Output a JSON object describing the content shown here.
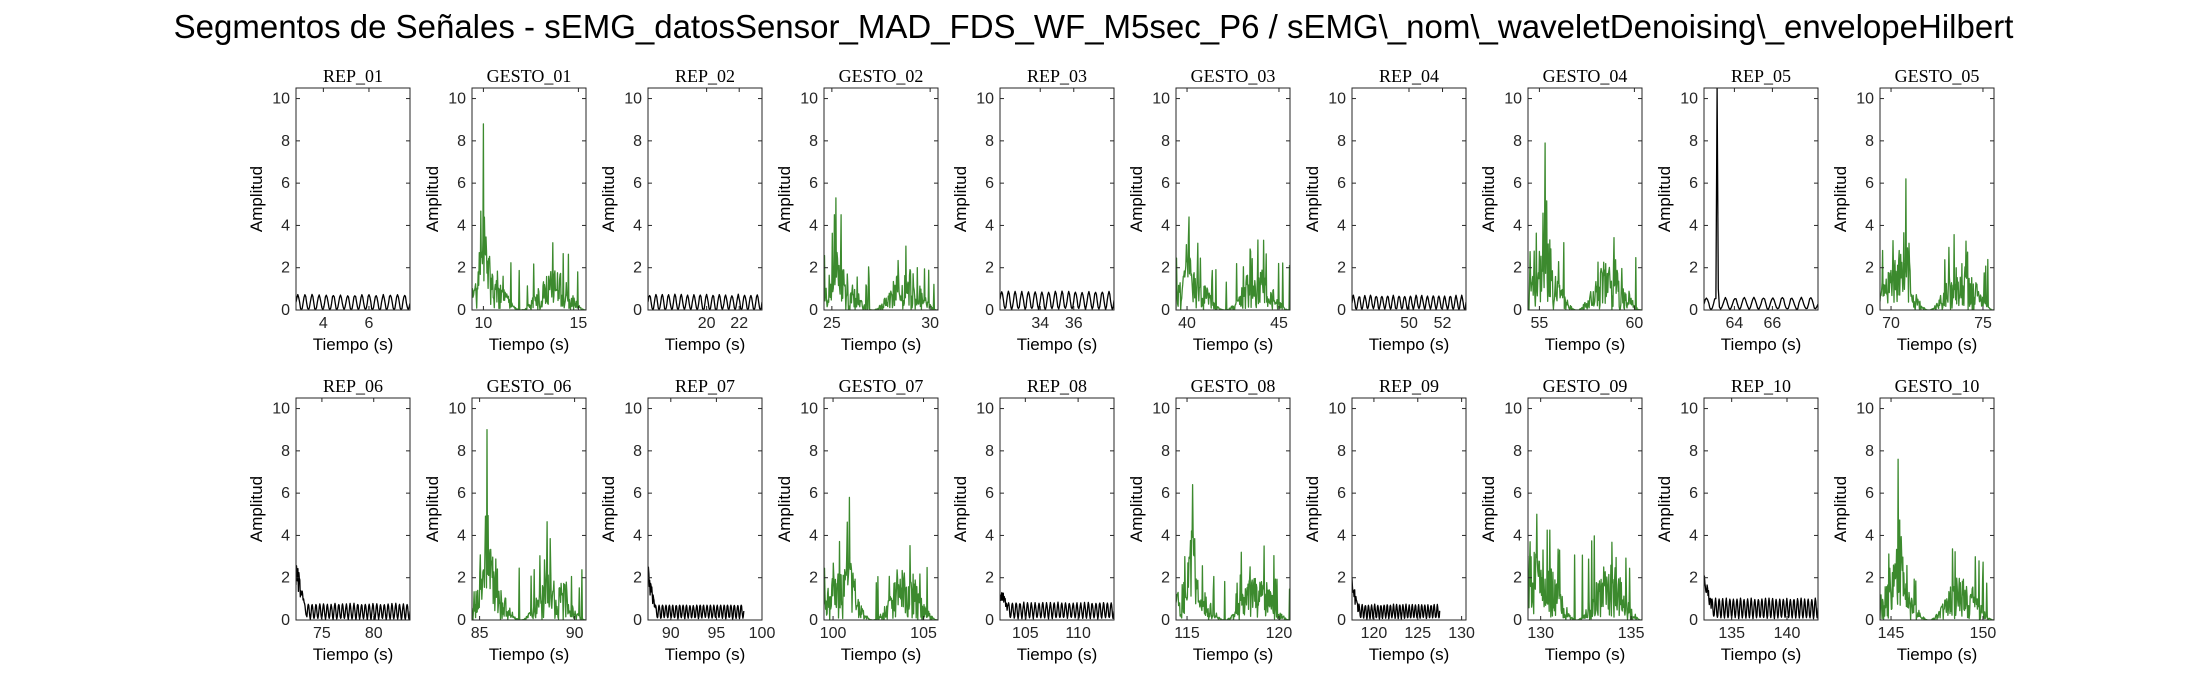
{
  "figure": {
    "title": "Segmentos de Señales - sEMG_datosSensor_MAD_FDS_WF_M5sec_P6 / sEMG\\_nom\\_waveletDenoising\\_envelopeHilbert"
  },
  "colors": {
    "rep": "#000000",
    "gesto": "#3c8a2e",
    "axis": "#262626"
  },
  "chart_data": [
    {
      "type": "line",
      "title": "REP_01",
      "xlabel": "Tiempo (s)",
      "ylabel": "Amplitud",
      "xlim": [
        2.8,
        7.8
      ],
      "ylim": [
        0,
        10.5
      ],
      "xticks": [
        4,
        6
      ],
      "yticks": [
        0,
        2,
        4,
        6,
        8,
        10
      ],
      "color": "rep",
      "series": [
        {
          "name": "REP_01",
          "x_range": [
            2.8,
            7.8
          ],
          "baseline": 0.35,
          "amplitude": 0.4,
          "peak": 0.8,
          "oscillation": 16
        }
      ]
    },
    {
      "type": "line",
      "title": "GESTO_01",
      "xlabel": "Tiempo (s)",
      "ylabel": "Amplitud",
      "xlim": [
        9.4,
        15.4
      ],
      "ylim": [
        0,
        10.5
      ],
      "xticks": [
        10,
        15
      ],
      "yticks": [
        0,
        2,
        4,
        6,
        8,
        10
      ],
      "color": "gesto",
      "series": [
        {
          "name": "GESTO_01",
          "x_range": [
            9.4,
            15.4
          ],
          "peak_x": 10.0,
          "peak": 8.8,
          "typical": 1.0
        }
      ]
    },
    {
      "type": "line",
      "title": "REP_02",
      "xlabel": "Tiempo (s)",
      "ylabel": "Amplitud",
      "xlim": [
        16.4,
        23.4
      ],
      "ylim": [
        0,
        10.5
      ],
      "xticks": [
        20,
        22
      ],
      "yticks": [
        0,
        2,
        4,
        6,
        8,
        10
      ],
      "color": "rep",
      "series": [
        {
          "name": "REP_02",
          "x_range": [
            16.4,
            23.4
          ],
          "baseline": 0.35,
          "amplitude": 0.4,
          "peak": 0.8,
          "oscillation": 18
        }
      ]
    },
    {
      "type": "line",
      "title": "GESTO_02",
      "xlabel": "Tiempo (s)",
      "ylabel": "Amplitud",
      "xlim": [
        24.6,
        30.4
      ],
      "ylim": [
        0,
        10.5
      ],
      "xticks": [
        25,
        30
      ],
      "yticks": [
        0,
        2,
        4,
        6,
        8,
        10
      ],
      "color": "gesto",
      "series": [
        {
          "name": "GESTO_02",
          "x_range": [
            24.6,
            30.4
          ],
          "peak_x": 25.2,
          "peak": 5.3,
          "typical": 1.0
        }
      ]
    },
    {
      "type": "line",
      "title": "REP_03",
      "xlabel": "Tiempo (s)",
      "ylabel": "Amplitud",
      "xlim": [
        31.6,
        38.4
      ],
      "ylim": [
        0,
        10.5
      ],
      "xticks": [
        34,
        36
      ],
      "yticks": [
        0,
        2,
        4,
        6,
        8,
        10
      ],
      "color": "rep",
      "series": [
        {
          "name": "REP_03",
          "x_range": [
            31.6,
            38.4
          ],
          "baseline": 0.45,
          "amplitude": 0.45,
          "peak": 0.9,
          "oscillation": 17
        }
      ]
    },
    {
      "type": "line",
      "title": "GESTO_03",
      "xlabel": "Tiempo (s)",
      "ylabel": "Amplitud",
      "xlim": [
        39.4,
        45.6
      ],
      "ylim": [
        0,
        10.5
      ],
      "xticks": [
        40,
        45
      ],
      "yticks": [
        0,
        2,
        4,
        6,
        8,
        10
      ],
      "color": "gesto",
      "series": [
        {
          "name": "GESTO_03",
          "x_range": [
            39.4,
            45.6
          ],
          "peak_x": 40.1,
          "peak": 4.4,
          "typical": 1.0
        }
      ]
    },
    {
      "type": "line",
      "title": "REP_04",
      "xlabel": "Tiempo (s)",
      "ylabel": "Amplitud",
      "xlim": [
        46.6,
        53.4
      ],
      "ylim": [
        0,
        10.5
      ],
      "xticks": [
        50,
        52
      ],
      "yticks": [
        0,
        2,
        4,
        6,
        8,
        10
      ],
      "color": "rep",
      "series": [
        {
          "name": "REP_04",
          "x_range": [
            46.6,
            53.4
          ],
          "baseline": 0.35,
          "amplitude": 0.35,
          "peak": 0.7,
          "oscillation": 20
        }
      ]
    },
    {
      "type": "line",
      "title": "GESTO_04",
      "xlabel": "Tiempo (s)",
      "ylabel": "Amplitud",
      "xlim": [
        54.4,
        60.4
      ],
      "ylim": [
        0,
        10.5
      ],
      "xticks": [
        55,
        60
      ],
      "yticks": [
        0,
        2,
        4,
        6,
        8,
        10
      ],
      "color": "gesto",
      "series": [
        {
          "name": "GESTO_04",
          "x_range": [
            54.4,
            60.4
          ],
          "peak_x": 55.3,
          "peak": 7.9,
          "typical": 1.3
        }
      ]
    },
    {
      "type": "line",
      "title": "REP_05",
      "xlabel": "Tiempo (s)",
      "ylabel": "Amplitud",
      "xlim": [
        62.4,
        68.4
      ],
      "ylim": [
        0,
        10.5
      ],
      "xticks": [
        64,
        66
      ],
      "yticks": [
        0,
        2,
        4,
        6,
        8,
        10
      ],
      "color": "rep",
      "series": [
        {
          "name": "REP_05",
          "x_range": [
            62.4,
            68.4
          ],
          "spike_x": 63.1,
          "spike": 10.5,
          "baseline": 0.3,
          "amplitude": 0.3,
          "peak": 0.6,
          "oscillation": 12
        }
      ]
    },
    {
      "type": "line",
      "title": "GESTO_05",
      "xlabel": "Tiempo (s)",
      "ylabel": "Amplitud",
      "xlim": [
        69.4,
        75.6
      ],
      "ylim": [
        0,
        10.5
      ],
      "xticks": [
        70,
        75
      ],
      "yticks": [
        0,
        2,
        4,
        6,
        8,
        10
      ],
      "color": "gesto",
      "series": [
        {
          "name": "GESTO_05",
          "x_range": [
            69.4,
            75.6
          ],
          "peak_x": 70.8,
          "peak": 6.2,
          "typical": 1.2
        }
      ]
    },
    {
      "type": "line",
      "title": "REP_06",
      "xlabel": "Tiempo (s)",
      "ylabel": "Amplitud",
      "xlim": [
        72.5,
        83.5
      ],
      "ylim": [
        0,
        10.5
      ],
      "xticks": [
        75,
        80
      ],
      "yticks": [
        0,
        2,
        4,
        6,
        8,
        10
      ],
      "color": "rep",
      "series": [
        {
          "name": "REP_06",
          "x_range": [
            72.5,
            83.5
          ],
          "start_peak": 3.2,
          "baseline": 0.4,
          "amplitude": 0.4,
          "peak": 0.8,
          "oscillation": 30
        }
      ]
    },
    {
      "type": "line",
      "title": "GESTO_06",
      "xlabel": "Tiempo (s)",
      "ylabel": "Amplitud",
      "xlim": [
        84.6,
        90.6
      ],
      "ylim": [
        0,
        10.5
      ],
      "xticks": [
        85,
        90
      ],
      "yticks": [
        0,
        2,
        4,
        6,
        8,
        10
      ],
      "color": "gesto",
      "series": [
        {
          "name": "GESTO_06",
          "x_range": [
            84.6,
            90.6
          ],
          "peak_x": 85.4,
          "peak": 9.0,
          "typical": 1.2
        }
      ]
    },
    {
      "type": "line",
      "title": "REP_07",
      "xlabel": "Tiempo (s)",
      "ylabel": "Amplitud",
      "xlim": [
        87.5,
        100
      ],
      "ylim": [
        0,
        10.5
      ],
      "xticks": [
        90,
        95,
        100
      ],
      "yticks": [
        0,
        2,
        4,
        6,
        8,
        10
      ],
      "color": "rep",
      "series": [
        {
          "name": "REP_07",
          "x_range": [
            87.5,
            98.0
          ],
          "start_peak": 2.7,
          "baseline": 0.4,
          "amplitude": 0.35,
          "peak": 0.7,
          "oscillation": 28
        }
      ]
    },
    {
      "type": "line",
      "title": "GESTO_07",
      "xlabel": "Tiempo (s)",
      "ylabel": "Amplitud",
      "xlim": [
        99.5,
        105.8
      ],
      "ylim": [
        0,
        10.5
      ],
      "xticks": [
        100,
        105
      ],
      "yticks": [
        0,
        2,
        4,
        6,
        8,
        10
      ],
      "color": "gesto",
      "series": [
        {
          "name": "GESTO_07",
          "x_range": [
            99.5,
            105.8
          ],
          "peak_x": 100.9,
          "peak": 5.8,
          "typical": 1.2
        }
      ]
    },
    {
      "type": "line",
      "title": "REP_08",
      "xlabel": "Tiempo (s)",
      "ylabel": "Amplitud",
      "xlim": [
        102.6,
        113.4
      ],
      "ylim": [
        0,
        10.5
      ],
      "xticks": [
        105,
        110
      ],
      "yticks": [
        0,
        2,
        4,
        6,
        8,
        10
      ],
      "color": "rep",
      "series": [
        {
          "name": "REP_08",
          "x_range": [
            102.6,
            113.4
          ],
          "start_peak": 2.0,
          "baseline": 0.45,
          "amplitude": 0.4,
          "peak": 0.9,
          "oscillation": 30
        }
      ]
    },
    {
      "type": "line",
      "title": "GESTO_08",
      "xlabel": "Tiempo (s)",
      "ylabel": "Amplitud",
      "xlim": [
        114.4,
        120.6
      ],
      "ylim": [
        0,
        10.5
      ],
      "xticks": [
        115,
        120
      ],
      "yticks": [
        0,
        2,
        4,
        6,
        8,
        10
      ],
      "color": "gesto",
      "series": [
        {
          "name": "GESTO_08",
          "x_range": [
            114.4,
            120.6
          ],
          "peak_x": 115.3,
          "peak": 6.4,
          "typical": 1.1
        }
      ]
    },
    {
      "type": "line",
      "title": "REP_09",
      "xlabel": "Tiempo (s)",
      "ylabel": "Amplitud",
      "xlim": [
        117.5,
        130.5
      ],
      "ylim": [
        0,
        10.5
      ],
      "xticks": [
        120,
        125,
        130
      ],
      "yticks": [
        0,
        2,
        4,
        6,
        8,
        10
      ],
      "color": "rep",
      "series": [
        {
          "name": "REP_09",
          "x_range": [
            117.5,
            127.5
          ],
          "start_peak": 2.3,
          "baseline": 0.4,
          "amplitude": 0.35,
          "peak": 0.8,
          "oscillation": 28
        }
      ]
    },
    {
      "type": "line",
      "title": "GESTO_09",
      "xlabel": "Tiempo (s)",
      "ylabel": "Amplitud",
      "xlim": [
        129.3,
        135.6
      ],
      "ylim": [
        0,
        10.5
      ],
      "xticks": [
        130,
        135
      ],
      "yticks": [
        0,
        2,
        4,
        6,
        8,
        10
      ],
      "color": "gesto",
      "series": [
        {
          "name": "GESTO_09",
          "x_range": [
            129.3,
            135.6
          ],
          "peak_x": 129.8,
          "peak": 5.0,
          "typical": 1.4
        }
      ]
    },
    {
      "type": "line",
      "title": "REP_10",
      "xlabel": "Tiempo (s)",
      "ylabel": "Amplitud",
      "xlim": [
        132.5,
        142.8
      ],
      "ylim": [
        0,
        10.5
      ],
      "xticks": [
        135,
        140
      ],
      "yticks": [
        0,
        2,
        4,
        6,
        8,
        10
      ],
      "color": "rep",
      "series": [
        {
          "name": "REP_10",
          "x_range": [
            132.5,
            142.8
          ],
          "start_peak": 2.5,
          "baseline": 0.55,
          "amplitude": 0.5,
          "peak": 1.5,
          "oscillation": 32
        }
      ]
    },
    {
      "type": "line",
      "title": "GESTO_10",
      "xlabel": "Tiempo (s)",
      "ylabel": "Amplitud",
      "xlim": [
        144.4,
        150.6
      ],
      "ylim": [
        0,
        10.5
      ],
      "xticks": [
        145,
        150
      ],
      "yticks": [
        0,
        2,
        4,
        6,
        8,
        10
      ],
      "color": "gesto",
      "series": [
        {
          "name": "GESTO_10",
          "x_range": [
            144.4,
            150.6
          ],
          "peak_x": 145.4,
          "peak": 7.6,
          "typical": 1.1
        }
      ]
    }
  ]
}
